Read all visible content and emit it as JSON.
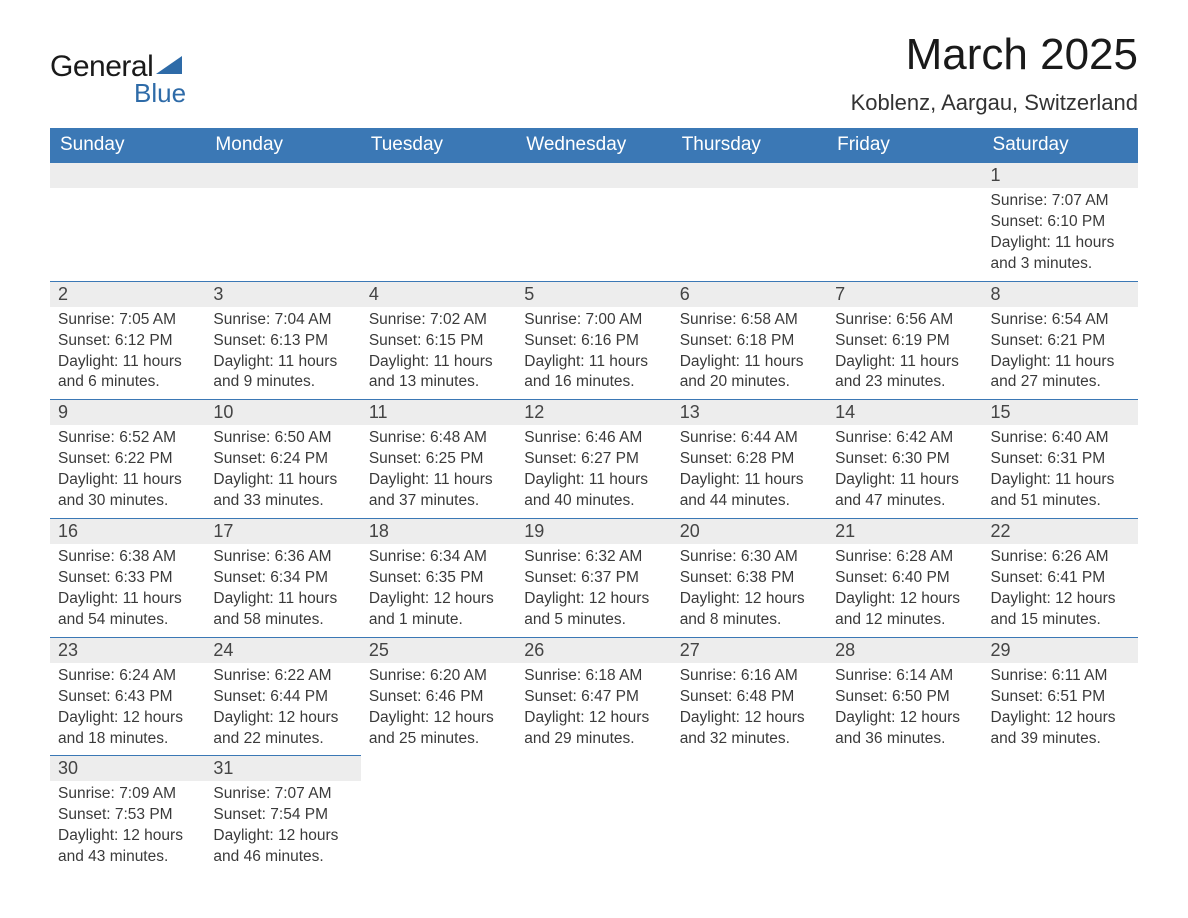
{
  "logo": {
    "text1": "General",
    "text2": "Blue"
  },
  "title": "March 2025",
  "subtitle": "Koblenz, Aargau, Switzerland",
  "colors": {
    "header_bg": "#3b78b5",
    "header_fg": "#ffffff",
    "daynum_bg": "#ededed",
    "border": "#3b78b5",
    "text": "#333333",
    "logo_blue": "#2e6ba8"
  },
  "typography": {
    "title_fontsize": 44,
    "subtitle_fontsize": 22,
    "header_fontsize": 19,
    "daynum_fontsize": 18,
    "body_fontsize": 15.5
  },
  "layout": {
    "columns": 7,
    "rows": 6
  },
  "weekdays": [
    "Sunday",
    "Monday",
    "Tuesday",
    "Wednesday",
    "Thursday",
    "Friday",
    "Saturday"
  ],
  "labels": {
    "sunrise": "Sunrise:",
    "sunset": "Sunset:",
    "daylight": "Daylight:"
  },
  "weeks": [
    [
      null,
      null,
      null,
      null,
      null,
      null,
      {
        "n": 1,
        "sr": "7:07 AM",
        "ss": "6:10 PM",
        "dl": "11 hours and 3 minutes."
      }
    ],
    [
      {
        "n": 2,
        "sr": "7:05 AM",
        "ss": "6:12 PM",
        "dl": "11 hours and 6 minutes."
      },
      {
        "n": 3,
        "sr": "7:04 AM",
        "ss": "6:13 PM",
        "dl": "11 hours and 9 minutes."
      },
      {
        "n": 4,
        "sr": "7:02 AM",
        "ss": "6:15 PM",
        "dl": "11 hours and 13 minutes."
      },
      {
        "n": 5,
        "sr": "7:00 AM",
        "ss": "6:16 PM",
        "dl": "11 hours and 16 minutes."
      },
      {
        "n": 6,
        "sr": "6:58 AM",
        "ss": "6:18 PM",
        "dl": "11 hours and 20 minutes."
      },
      {
        "n": 7,
        "sr": "6:56 AM",
        "ss": "6:19 PM",
        "dl": "11 hours and 23 minutes."
      },
      {
        "n": 8,
        "sr": "6:54 AM",
        "ss": "6:21 PM",
        "dl": "11 hours and 27 minutes."
      }
    ],
    [
      {
        "n": 9,
        "sr": "6:52 AM",
        "ss": "6:22 PM",
        "dl": "11 hours and 30 minutes."
      },
      {
        "n": 10,
        "sr": "6:50 AM",
        "ss": "6:24 PM",
        "dl": "11 hours and 33 minutes."
      },
      {
        "n": 11,
        "sr": "6:48 AM",
        "ss": "6:25 PM",
        "dl": "11 hours and 37 minutes."
      },
      {
        "n": 12,
        "sr": "6:46 AM",
        "ss": "6:27 PM",
        "dl": "11 hours and 40 minutes."
      },
      {
        "n": 13,
        "sr": "6:44 AM",
        "ss": "6:28 PM",
        "dl": "11 hours and 44 minutes."
      },
      {
        "n": 14,
        "sr": "6:42 AM",
        "ss": "6:30 PM",
        "dl": "11 hours and 47 minutes."
      },
      {
        "n": 15,
        "sr": "6:40 AM",
        "ss": "6:31 PM",
        "dl": "11 hours and 51 minutes."
      }
    ],
    [
      {
        "n": 16,
        "sr": "6:38 AM",
        "ss": "6:33 PM",
        "dl": "11 hours and 54 minutes."
      },
      {
        "n": 17,
        "sr": "6:36 AM",
        "ss": "6:34 PM",
        "dl": "11 hours and 58 minutes."
      },
      {
        "n": 18,
        "sr": "6:34 AM",
        "ss": "6:35 PM",
        "dl": "12 hours and 1 minute."
      },
      {
        "n": 19,
        "sr": "6:32 AM",
        "ss": "6:37 PM",
        "dl": "12 hours and 5 minutes."
      },
      {
        "n": 20,
        "sr": "6:30 AM",
        "ss": "6:38 PM",
        "dl": "12 hours and 8 minutes."
      },
      {
        "n": 21,
        "sr": "6:28 AM",
        "ss": "6:40 PM",
        "dl": "12 hours and 12 minutes."
      },
      {
        "n": 22,
        "sr": "6:26 AM",
        "ss": "6:41 PM",
        "dl": "12 hours and 15 minutes."
      }
    ],
    [
      {
        "n": 23,
        "sr": "6:24 AM",
        "ss": "6:43 PM",
        "dl": "12 hours and 18 minutes."
      },
      {
        "n": 24,
        "sr": "6:22 AM",
        "ss": "6:44 PM",
        "dl": "12 hours and 22 minutes."
      },
      {
        "n": 25,
        "sr": "6:20 AM",
        "ss": "6:46 PM",
        "dl": "12 hours and 25 minutes."
      },
      {
        "n": 26,
        "sr": "6:18 AM",
        "ss": "6:47 PM",
        "dl": "12 hours and 29 minutes."
      },
      {
        "n": 27,
        "sr": "6:16 AM",
        "ss": "6:48 PM",
        "dl": "12 hours and 32 minutes."
      },
      {
        "n": 28,
        "sr": "6:14 AM",
        "ss": "6:50 PM",
        "dl": "12 hours and 36 minutes."
      },
      {
        "n": 29,
        "sr": "6:11 AM",
        "ss": "6:51 PM",
        "dl": "12 hours and 39 minutes."
      }
    ],
    [
      {
        "n": 30,
        "sr": "7:09 AM",
        "ss": "7:53 PM",
        "dl": "12 hours and 43 minutes."
      },
      {
        "n": 31,
        "sr": "7:07 AM",
        "ss": "7:54 PM",
        "dl": "12 hours and 46 minutes."
      },
      null,
      null,
      null,
      null,
      null
    ]
  ]
}
